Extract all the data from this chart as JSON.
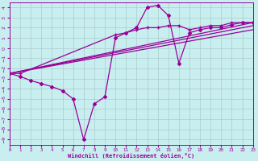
{
  "xlabel": "Windchill (Refroidissement éolien,°C)",
  "bg_color": "#c8eef0",
  "line_color": "#990099",
  "grid_color": "#aacccc",
  "xlim": [
    0,
    23
  ],
  "ylim": [
    -9.5,
    4.5
  ],
  "xticks": [
    0,
    1,
    2,
    3,
    4,
    5,
    6,
    7,
    8,
    9,
    10,
    11,
    12,
    13,
    14,
    15,
    16,
    17,
    18,
    19,
    20,
    21,
    22,
    23
  ],
  "yticks": [
    4,
    3,
    2,
    1,
    0,
    -1,
    -2,
    -3,
    -4,
    -5,
    -6,
    -7,
    -8,
    -9
  ],
  "series_main": {
    "x": [
      0,
      1,
      2,
      3,
      4,
      5,
      6,
      7,
      8,
      9,
      10,
      11,
      12,
      13,
      14,
      15,
      16,
      17,
      18,
      19,
      20,
      21,
      22,
      23
    ],
    "y": [
      -2.5,
      -2.8,
      -3.2,
      -3.5,
      -3.8,
      -4.2,
      -5.0,
      -9.0,
      -5.5,
      -4.8,
      1.0,
      1.5,
      2.0,
      4.0,
      4.2,
      3.2,
      -1.5,
      1.5,
      1.8,
      2.0,
      2.0,
      2.3,
      2.5,
      2.5
    ]
  },
  "series_plus": {
    "x": [
      0,
      1,
      10,
      11,
      12,
      13,
      14,
      15,
      16,
      17,
      18,
      19,
      20,
      21,
      22,
      23
    ],
    "y": [
      -2.5,
      -2.5,
      1.3,
      1.5,
      1.8,
      2.0,
      2.0,
      2.2,
      2.2,
      1.8,
      2.0,
      2.2,
      2.2,
      2.5,
      2.5,
      2.5
    ]
  },
  "trend_lines": [
    {
      "x": [
        0,
        23
      ],
      "y": [
        -2.5,
        2.5
      ]
    },
    {
      "x": [
        0,
        23
      ],
      "y": [
        -2.5,
        2.2
      ]
    },
    {
      "x": [
        0,
        23
      ],
      "y": [
        -2.5,
        1.8
      ]
    }
  ]
}
